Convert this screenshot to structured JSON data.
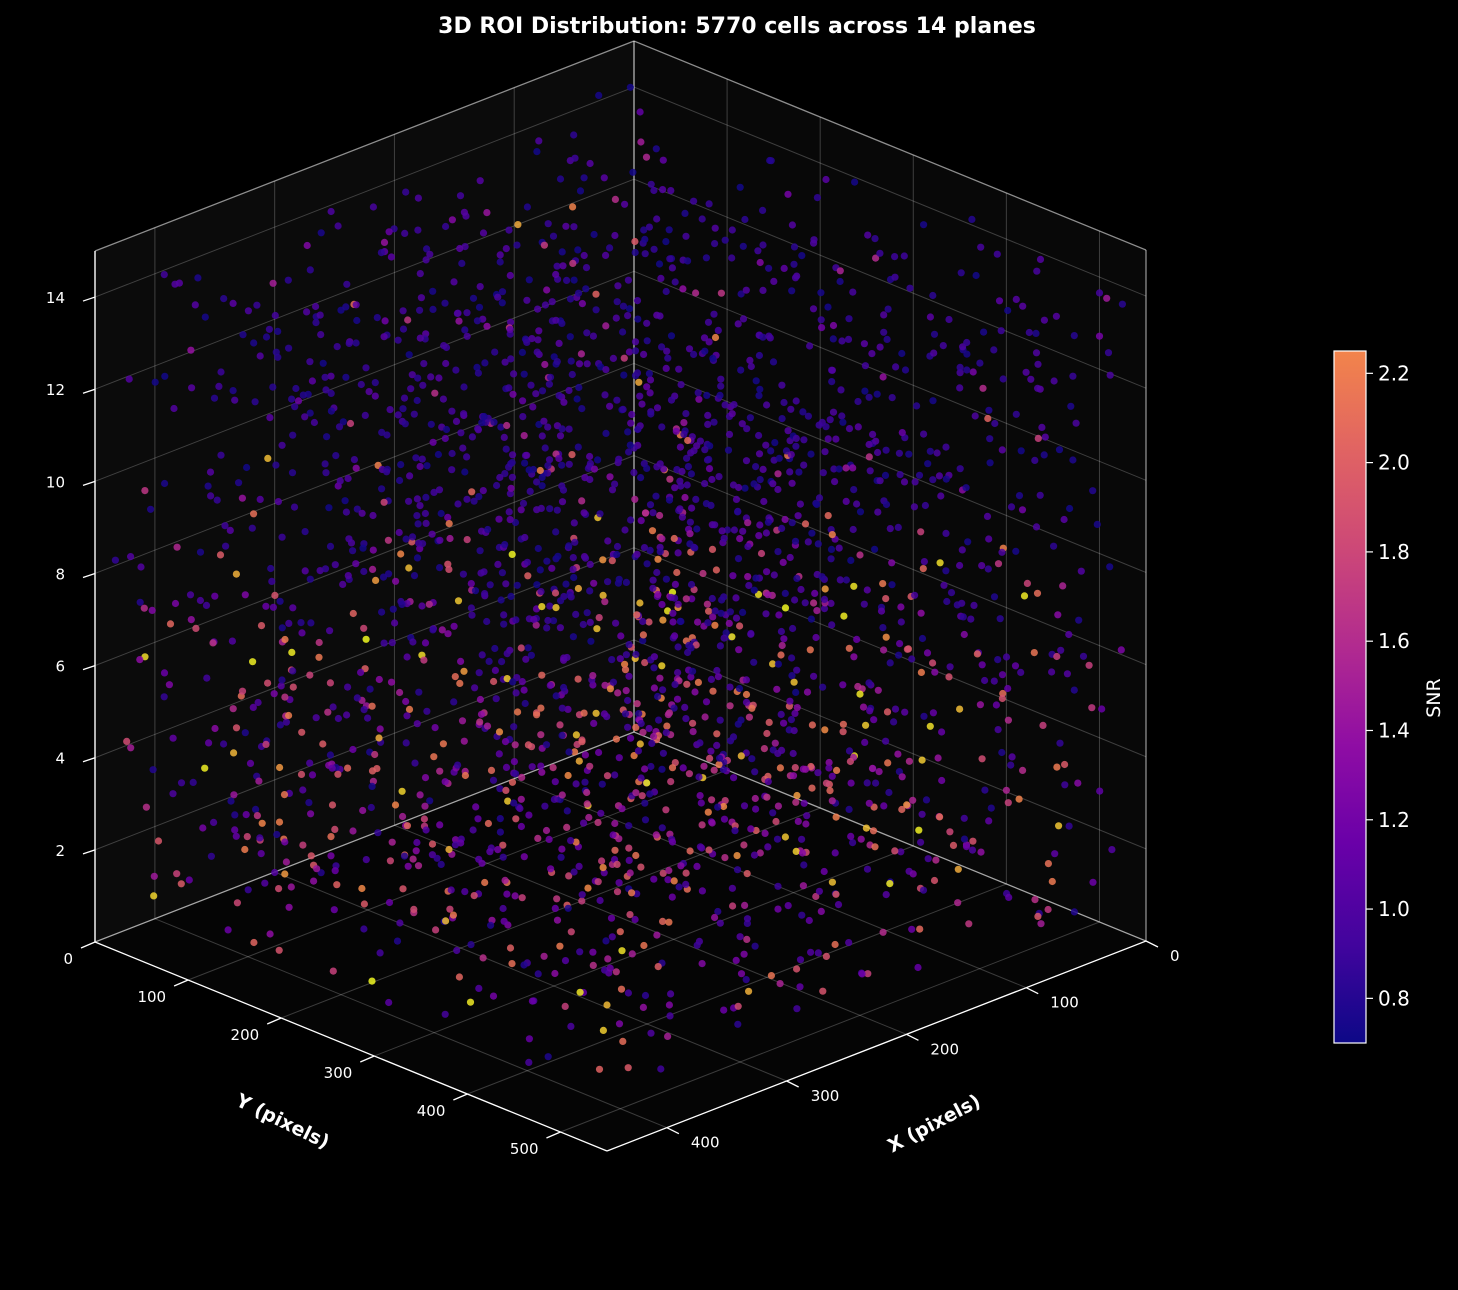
{
  "chart_data": {
    "type": "scatter",
    "projection": "3d",
    "title": "3D ROI Distribution: 5770 cells across 14 planes",
    "xlabel": "X (pixels)",
    "ylabel": "Y (pixels)",
    "zlabel": "",
    "xlim": [
      0,
      450
    ],
    "ylim": [
      0,
      550
    ],
    "zlim": [
      0,
      15
    ],
    "x_ticks": [
      "0",
      "100",
      "200",
      "300",
      "400"
    ],
    "y_ticks": [
      "0",
      "100",
      "200",
      "300",
      "400",
      "500"
    ],
    "z_ticks": [
      "2",
      "4",
      "6",
      "8",
      "10",
      "12",
      "14"
    ],
    "n_cells": 5770,
    "n_planes": 14,
    "planes": [
      1,
      2,
      3,
      4,
      5,
      6,
      7,
      8,
      9,
      10,
      11,
      12,
      13,
      14
    ],
    "color_by": "SNR",
    "colormap": "plasma",
    "colorbar": {
      "label": "SNR",
      "range": [
        0.7,
        2.25
      ],
      "ticks": [
        "0.8",
        "1.0",
        "1.2",
        "1.4",
        "1.6",
        "1.8",
        "2.0",
        "2.2"
      ]
    },
    "snr_trend": "higher SNR in lower planes (1-7), mostly 0.8-1.0 in upper planes (8-14)",
    "grid": true,
    "background": "#000000",
    "foreground": "#ffffff"
  }
}
